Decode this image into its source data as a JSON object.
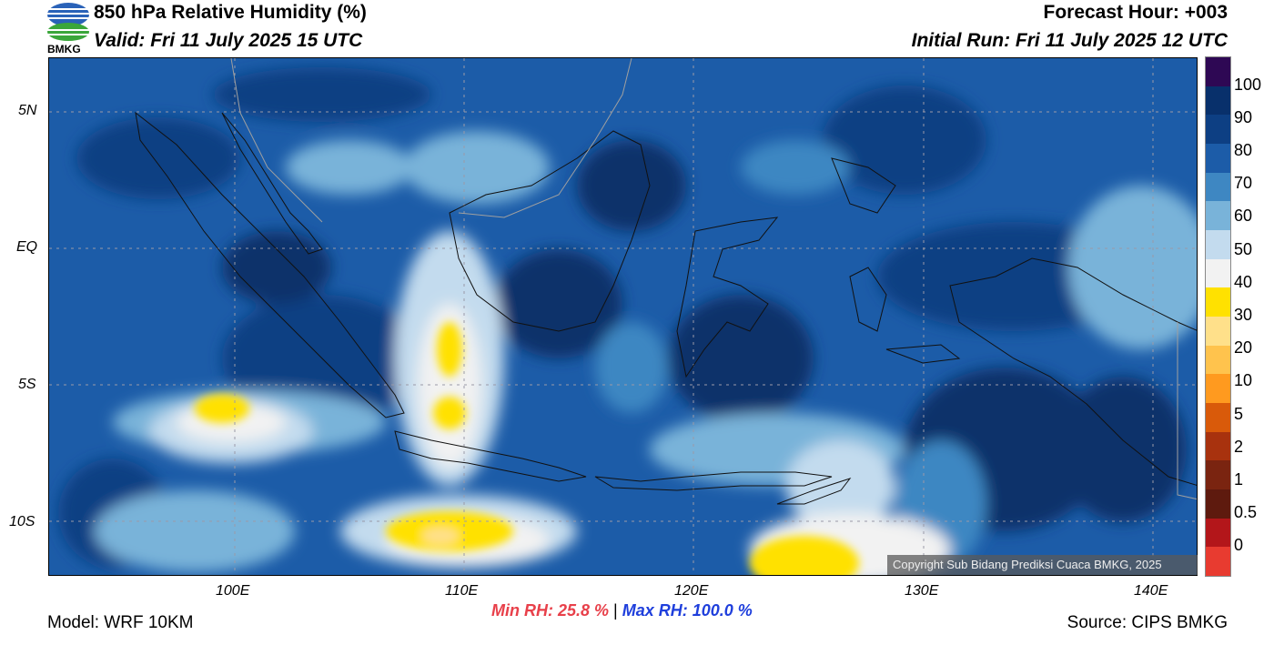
{
  "header": {
    "title": "850 hPa Relative Humidity (%)",
    "valid": "Valid: Fri 11 July 2025 15 UTC",
    "forecast_hour": "Forecast Hour: +003",
    "initial_run": "Initial Run: Fri 11 July 2025 12 UTC",
    "logo_text": "BMKG"
  },
  "map": {
    "lat_labels": [
      "5N",
      "EQ",
      "5S",
      "10S"
    ],
    "lon_labels": [
      "100E",
      "110E",
      "120E",
      "130E",
      "140E"
    ],
    "copyright": "Copyright Sub Bidang Prediksi Cuaca BMKG, 2025"
  },
  "colorbar": {
    "labels": [
      "100",
      "90",
      "80",
      "70",
      "60",
      "50",
      "40",
      "30",
      "20",
      "10",
      "5",
      "2",
      "1",
      "0.5",
      "0"
    ],
    "colors": [
      "#2e0854",
      "#08306b",
      "#0d3f83",
      "#1c5ca8",
      "#3e87c2",
      "#79b3d9",
      "#c3dbee",
      "#f2f2f2",
      "#ffe100",
      "#ffe08a",
      "#ffc34d",
      "#ff9a1f",
      "#d95a0a",
      "#a8320e",
      "#7a2410",
      "#5e1a0e",
      "#b3161a",
      "#e83b30"
    ]
  },
  "footer": {
    "model": "Model: WRF 10KM",
    "min_rh": "Min RH:  25.8 %",
    "separator": "|",
    "max_rh": "Max RH: 100.0 %",
    "source": "Source: CIPS BMKG"
  }
}
